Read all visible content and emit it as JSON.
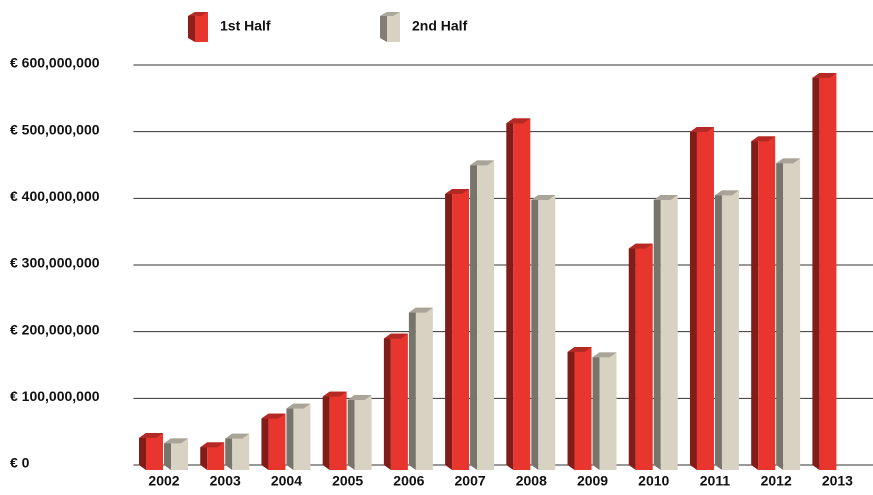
{
  "chart_data": {
    "type": "bar",
    "categories": [
      "2002",
      "2003",
      "2004",
      "2005",
      "2006",
      "2007",
      "2008",
      "2009",
      "2010",
      "2011",
      "2012",
      "2013"
    ],
    "series": [
      {
        "name": "1st Half",
        "color": "#e8352e",
        "values": [
          48000000,
          34000000,
          77000000,
          110000000,
          197000000,
          414000000,
          520000000,
          177000000,
          332000000,
          507000000,
          493000000,
          588000000
        ]
      },
      {
        "name": "2nd Half",
        "color": "#d8d2c2",
        "values": [
          40000000,
          47000000,
          92000000,
          105000000,
          236000000,
          457000000,
          405000000,
          169000000,
          405000000,
          412000000,
          460000000,
          null
        ]
      }
    ],
    "ylim": [
      0,
      600000000
    ],
    "yticks": [
      {
        "value": 0,
        "label": "€ 0"
      },
      {
        "value": 100000000,
        "label": "€ 100,000,000"
      },
      {
        "value": 200000000,
        "label": "€ 200,000,000"
      },
      {
        "value": 300000000,
        "label": "€ 300,000,000"
      },
      {
        "value": 400000000,
        "label": "€ 400,000,000"
      },
      {
        "value": 500000000,
        "label": "€ 500,000,000"
      },
      {
        "value": 600000000,
        "label": "€ 600,000,000"
      }
    ],
    "grid": true,
    "legend": "top"
  }
}
